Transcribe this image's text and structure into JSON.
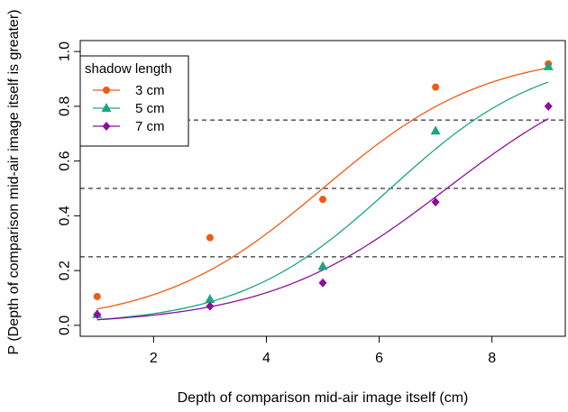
{
  "chart_data": {
    "type": "scatter",
    "title": "",
    "xlabel": "Depth of comparison mid-air image itself (cm)",
    "ylabel": "P (Depth of comparison mid-air image itself is greater)",
    "xlim": [
      0.7,
      9.3
    ],
    "ylim": [
      -0.04,
      1.04
    ],
    "xticks": [
      2,
      4,
      6,
      8
    ],
    "yticks": [
      0.0,
      0.2,
      0.4,
      0.6,
      0.8,
      1.0
    ],
    "ytick_labels": [
      "0.0",
      "0.2",
      "0.4",
      "0.6",
      "0.8",
      "1.0"
    ],
    "xtick_labels": [
      "2",
      "4",
      "6",
      "8"
    ],
    "reference_lines": [
      0.25,
      0.5,
      0.75
    ],
    "legend": {
      "title": "shadow length",
      "placement": "top-left"
    },
    "series": [
      {
        "name": "3 cm",
        "color": "#f05a14",
        "marker": "circle",
        "x": [
          1,
          3,
          5,
          7,
          9
        ],
        "y": [
          0.105,
          0.32,
          0.46,
          0.87,
          0.955
        ],
        "fit": {
          "mu": 5.0,
          "s": 1.45
        }
      },
      {
        "name": "5 cm",
        "color": "#1aa680",
        "marker": "triangle",
        "x": [
          1,
          3,
          5,
          7,
          9
        ],
        "y": [
          0.04,
          0.095,
          0.215,
          0.71,
          0.945
        ],
        "fit": {
          "mu": 6.2,
          "s": 1.35
        }
      },
      {
        "name": "7 cm",
        "color": "#8b0e9c",
        "marker": "diamond",
        "x": [
          1,
          3,
          5,
          7,
          9
        ],
        "y": [
          0.04,
          0.07,
          0.155,
          0.45,
          0.8
        ],
        "fit": {
          "mu": 7.2,
          "s": 1.6
        }
      }
    ]
  }
}
